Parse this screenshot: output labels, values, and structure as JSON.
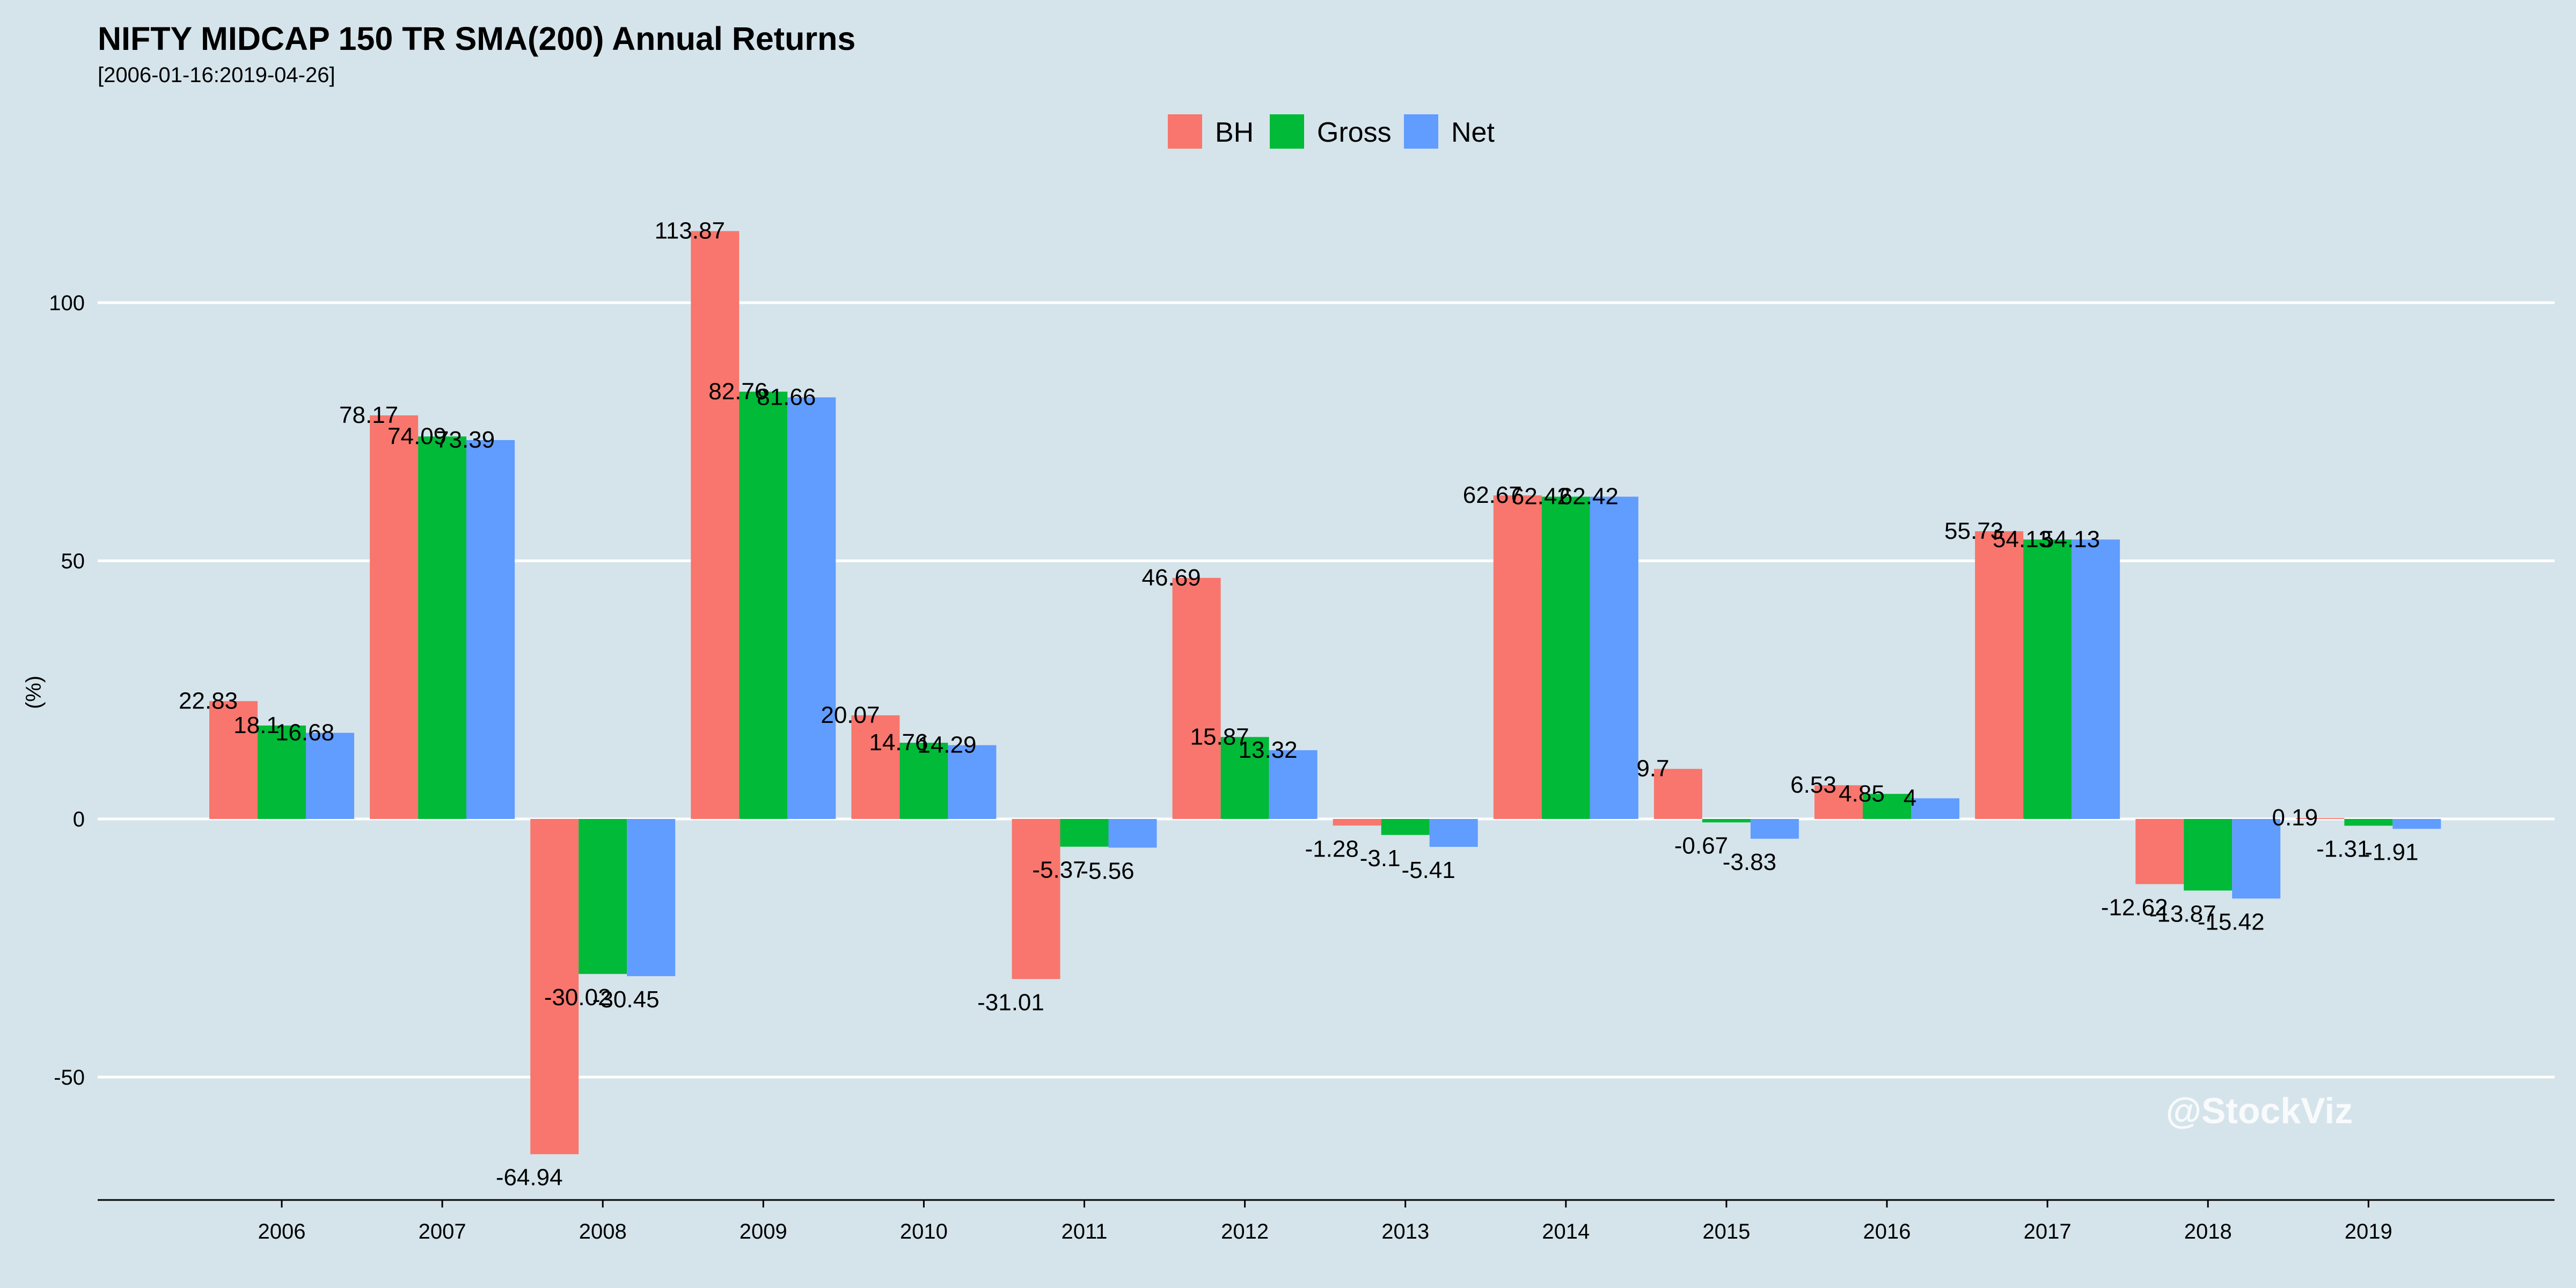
{
  "chart_data": {
    "type": "bar",
    "title": "NIFTY MIDCAP 150 TR SMA(200) Annual Returns",
    "subtitle": "[2006-01-16:2019-04-26]",
    "xlabel": "",
    "ylabel": "(%)",
    "ylim": [
      -74,
      118
    ],
    "yticks": [
      -50,
      0,
      50,
      100
    ],
    "grid": true,
    "legend_position": "top",
    "categories": [
      "2006",
      "2007",
      "2008",
      "2009",
      "2010",
      "2011",
      "2012",
      "2013",
      "2014",
      "2015",
      "2016",
      "2017",
      "2018",
      "2019"
    ],
    "series": [
      {
        "name": "BH",
        "color": "#f8766d",
        "values": [
          22.83,
          78.17,
          -64.94,
          113.87,
          20.07,
          -31.01,
          46.69,
          -1.28,
          62.67,
          9.7,
          6.53,
          55.73,
          -12.62,
          0.19
        ]
      },
      {
        "name": "Gross",
        "color": "#00ba38",
        "values": [
          18.1,
          74.09,
          -30.02,
          82.76,
          14.76,
          -5.37,
          15.87,
          -3.1,
          62.42,
          -0.67,
          4.85,
          54.13,
          -13.87,
          -1.31
        ]
      },
      {
        "name": "Net",
        "color": "#619cff",
        "values": [
          16.68,
          73.39,
          -30.45,
          81.66,
          14.29,
          -5.56,
          13.32,
          -5.41,
          62.42,
          -3.83,
          4,
          54.13,
          -15.42,
          -1.91
        ]
      }
    ]
  },
  "watermark": "@StockViz"
}
